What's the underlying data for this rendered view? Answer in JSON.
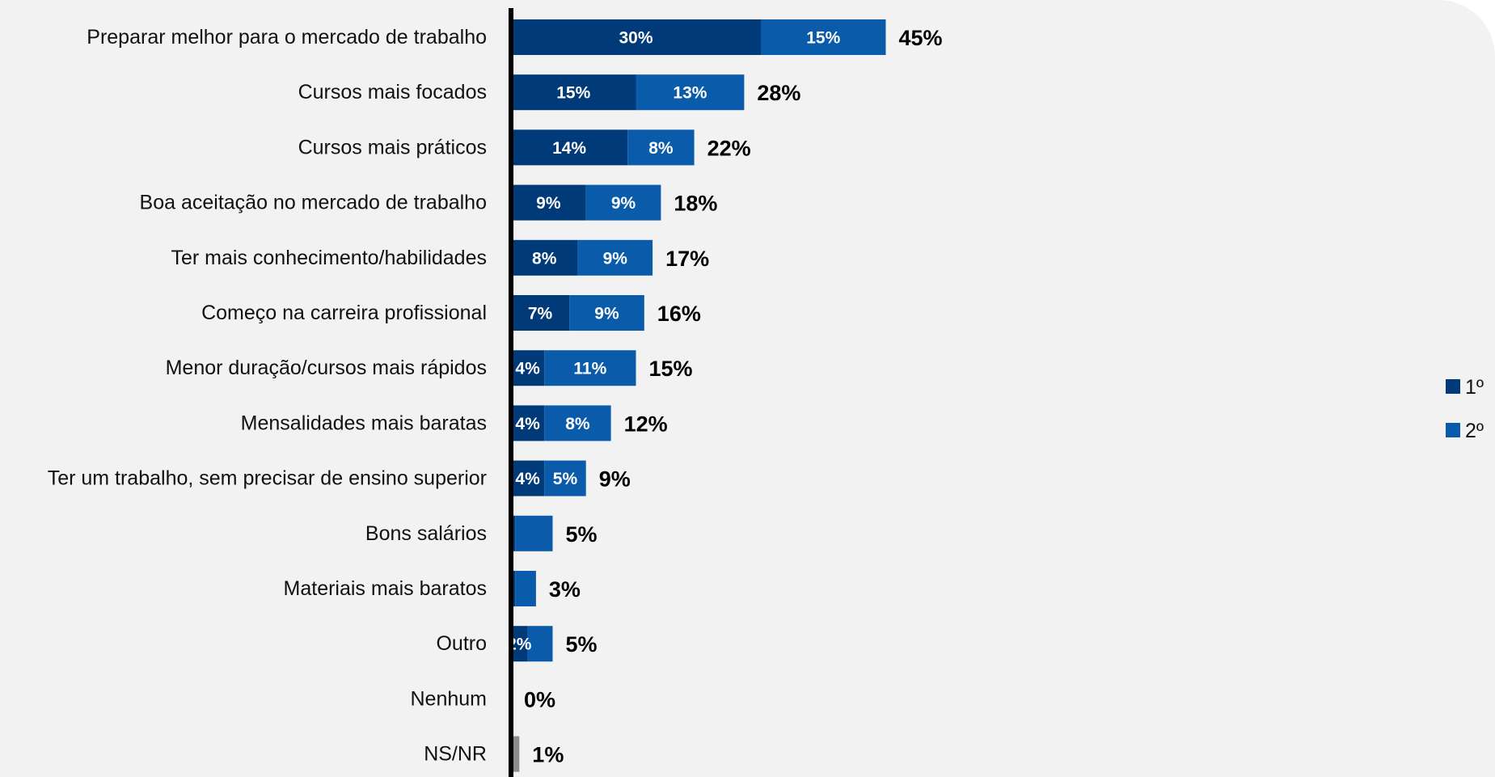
{
  "chart_data": {
    "type": "bar",
    "orientation": "horizontal",
    "stacked": true,
    "title": "",
    "xlabel": "",
    "ylabel": "",
    "xlim": [
      0,
      100
    ],
    "grid": false,
    "legend_position": "right",
    "categories": [
      "Preparar melhor para o mercado de trabalho",
      "Cursos mais focados",
      "Cursos mais práticos",
      "Boa aceitação no mercado de trabalho",
      "Ter mais conhecimento/habilidades",
      "Começo na carreira profissional",
      "Menor duração/cursos mais rápidos",
      "Mensalidades mais baratas",
      "Ter um trabalho, sem precisar de ensino superior",
      "Bons salários",
      "Materiais mais baratos",
      "Outro",
      "Nenhum",
      "NS/NR"
    ],
    "series": [
      {
        "name": "1º",
        "color": "#003a78",
        "values": [
          30,
          15,
          14,
          9,
          8,
          7,
          4,
          4,
          4,
          0.5,
          0.5,
          2,
          0,
          0
        ],
        "labels": [
          "30%",
          "15%",
          "14%",
          "9%",
          "8%",
          "7%",
          "4%",
          "4%",
          "4%",
          "",
          "",
          "2%",
          "",
          ""
        ]
      },
      {
        "name": "2º",
        "color": "#0a5cab",
        "values": [
          15,
          13,
          8,
          9,
          9,
          9,
          11,
          8,
          5,
          4.5,
          2.5,
          3,
          0,
          0
        ],
        "labels": [
          "15%",
          "13%",
          "8%",
          "9%",
          "9%",
          "9%",
          "11%",
          "8%",
          "5%",
          "",
          "",
          "",
          "",
          ""
        ]
      },
      {
        "name": "NS/NR",
        "color": "#8c8c8c",
        "values": [
          0,
          0,
          0,
          0,
          0,
          0,
          0,
          0,
          0,
          0,
          0,
          0,
          0,
          1
        ],
        "labels": [
          "",
          "",
          "",
          "",
          "",
          "",
          "",
          "",
          "",
          "",
          "",
          "",
          "",
          ""
        ]
      }
    ],
    "totals": [
      45,
      28,
      22,
      18,
      17,
      16,
      15,
      12,
      9,
      5,
      3,
      5,
      0,
      1
    ],
    "total_labels": [
      "45%",
      "28%",
      "22%",
      "18%",
      "17%",
      "16%",
      "15%",
      "12%",
      "9%",
      "5%",
      "3%",
      "5%",
      "0%",
      "1%"
    ],
    "legend": [
      {
        "label": "1º",
        "color": "#003a78"
      },
      {
        "label": "2º",
        "color": "#0a5cab"
      }
    ],
    "axis_color": "#000000"
  }
}
